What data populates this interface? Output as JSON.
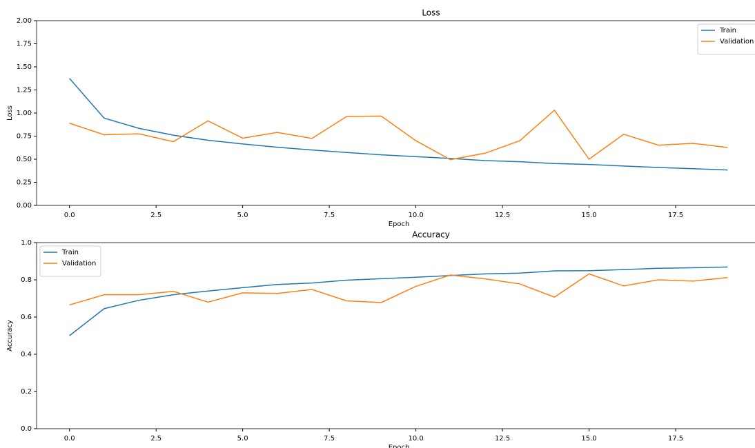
{
  "chart_data": [
    {
      "type": "line",
      "title": "Loss",
      "x_label": "Epoch",
      "y_label": "Loss",
      "x": [
        0,
        1,
        2,
        3,
        4,
        5,
        6,
        7,
        8,
        9,
        10,
        11,
        12,
        13,
        14,
        15,
        16,
        17,
        18,
        19
      ],
      "series": [
        {
          "name": "Train",
          "color": "#1f77b4",
          "values": [
            1.375,
            0.945,
            0.835,
            0.76,
            0.705,
            0.665,
            0.63,
            0.6,
            0.573,
            0.548,
            0.528,
            0.508,
            0.485,
            0.473,
            0.453,
            0.443,
            0.426,
            0.41,
            0.397,
            0.383
          ]
        },
        {
          "name": "Validation",
          "color": "#ff7f0e",
          "values": [
            0.89,
            0.765,
            0.775,
            0.69,
            0.915,
            0.728,
            0.79,
            0.725,
            0.963,
            0.967,
            0.7,
            0.495,
            0.565,
            0.7,
            1.03,
            0.5,
            0.77,
            0.652,
            0.672,
            0.627
          ]
        }
      ],
      "xlim": [
        -0.95,
        19.95
      ],
      "xticks": [
        {
          "value": 0,
          "label": "0.0"
        },
        {
          "value": 2.5,
          "label": "2.5"
        },
        {
          "value": 5,
          "label": "5.0"
        },
        {
          "value": 7.5,
          "label": "7.5"
        },
        {
          "value": 10,
          "label": "10.0"
        },
        {
          "value": 12.5,
          "label": "12.5"
        },
        {
          "value": 15,
          "label": "15.0"
        },
        {
          "value": 17.5,
          "label": "17.5"
        }
      ],
      "ylim": [
        0,
        2
      ],
      "yticks": [
        {
          "value": 0,
          "label": "0.00"
        },
        {
          "value": 0.25,
          "label": "0.25"
        },
        {
          "value": 0.5,
          "label": "0.50"
        },
        {
          "value": 0.75,
          "label": "0.75"
        },
        {
          "value": 1,
          "label": "1.00"
        },
        {
          "value": 1.25,
          "label": "1.25"
        },
        {
          "value": 1.5,
          "label": "1.50"
        },
        {
          "value": 1.75,
          "label": "1.75"
        },
        {
          "value": 2,
          "label": "2.00"
        }
      ],
      "legend": "upper right"
    },
    {
      "type": "line",
      "title": "Accuracy",
      "x_label": "Epoch",
      "y_label": "Accuracy",
      "x": [
        0,
        1,
        2,
        3,
        4,
        5,
        6,
        7,
        8,
        9,
        10,
        11,
        12,
        13,
        14,
        15,
        16,
        17,
        18,
        19
      ],
      "series": [
        {
          "name": "Train",
          "color": "#1f77b4",
          "values": [
            0.5,
            0.645,
            0.69,
            0.72,
            0.74,
            0.758,
            0.775,
            0.783,
            0.798,
            0.806,
            0.814,
            0.823,
            0.832,
            0.836,
            0.848,
            0.849,
            0.855,
            0.862,
            0.865,
            0.869
          ]
        },
        {
          "name": "Validation",
          "color": "#ff7f0e",
          "values": [
            0.665,
            0.72,
            0.72,
            0.738,
            0.68,
            0.73,
            0.727,
            0.748,
            0.687,
            0.678,
            0.765,
            0.826,
            0.805,
            0.778,
            0.707,
            0.832,
            0.767,
            0.8,
            0.793,
            0.812
          ]
        }
      ],
      "xlim": [
        -0.95,
        19.95
      ],
      "xticks": [
        {
          "value": 0,
          "label": "0.0"
        },
        {
          "value": 2.5,
          "label": "2.5"
        },
        {
          "value": 5,
          "label": "5.0"
        },
        {
          "value": 7.5,
          "label": "7.5"
        },
        {
          "value": 10,
          "label": "10.0"
        },
        {
          "value": 12.5,
          "label": "12.5"
        },
        {
          "value": 15,
          "label": "15.0"
        },
        {
          "value": 17.5,
          "label": "17.5"
        }
      ],
      "ylim": [
        0,
        1
      ],
      "yticks": [
        {
          "value": 0,
          "label": "0.0"
        },
        {
          "value": 0.2,
          "label": "0.2"
        },
        {
          "value": 0.4,
          "label": "0.4"
        },
        {
          "value": 0.6,
          "label": "0.6"
        },
        {
          "value": 0.8,
          "label": "0.8"
        },
        {
          "value": 1,
          "label": "1.0"
        }
      ],
      "legend": "upper left"
    }
  ]
}
